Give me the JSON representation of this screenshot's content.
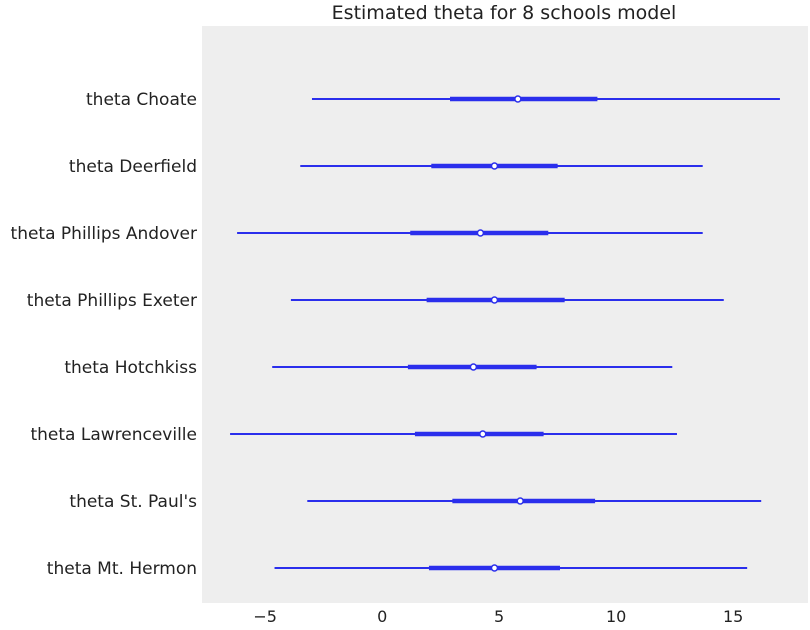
{
  "chart_data": {
    "type": "forest",
    "title": "Estimated theta for 8 schools model",
    "xlabel": "",
    "ylabel": "",
    "xlim": [
      -7.7,
      18.2
    ],
    "xticks": [
      -5,
      0,
      5,
      10,
      15
    ],
    "xtick_labels": [
      "−5",
      "0",
      "5",
      "10",
      "15"
    ],
    "grid": false,
    "colors": {
      "series": "#2a2eec",
      "background": "#eeeeee",
      "median_fill": "#ffffff"
    },
    "categories": [
      "theta Choate",
      "theta Deerfield",
      "theta Phillips Andover",
      "theta Phillips Exeter",
      "theta Hotchkiss",
      "theta Lawrenceville",
      "theta St. Paul's",
      "theta Mt. Hermon"
    ],
    "median": [
      5.8,
      4.8,
      4.2,
      4.8,
      3.9,
      4.3,
      5.9,
      4.8
    ],
    "inner_interval": [
      [
        2.9,
        9.2
      ],
      [
        2.1,
        7.5
      ],
      [
        1.2,
        7.1
      ],
      [
        1.9,
        7.8
      ],
      [
        1.1,
        6.6
      ],
      [
        1.4,
        6.9
      ],
      [
        3.0,
        9.1
      ],
      [
        2.0,
        7.6
      ]
    ],
    "outer_interval": [
      [
        -3.0,
        17.0
      ],
      [
        -3.5,
        13.7
      ],
      [
        -6.2,
        13.7
      ],
      [
        -3.9,
        14.6
      ],
      [
        -4.7,
        12.4
      ],
      [
        -6.5,
        12.6
      ],
      [
        -3.2,
        16.2
      ],
      [
        -4.6,
        15.6
      ]
    ]
  }
}
